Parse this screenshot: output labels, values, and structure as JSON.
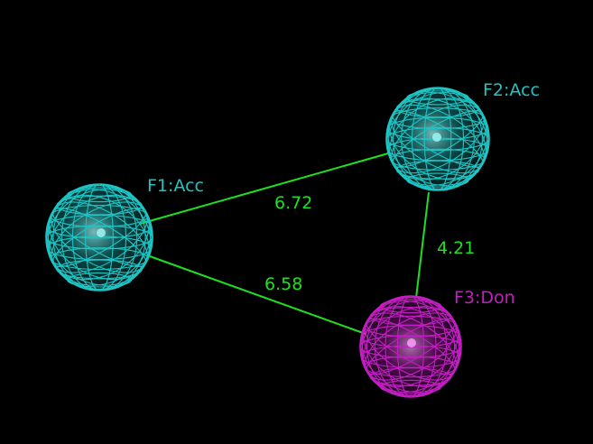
{
  "colors": {
    "background": "#000000",
    "acceptor": "#1fc4c4",
    "acceptor_glow": "#9ff5f5",
    "donor": "#c21ec2",
    "donor_glow": "#f59ff5",
    "distance_line": "#1fe01f"
  },
  "features": [
    {
      "id": "F1",
      "label": "F1:Acc",
      "type": "acceptor"
    },
    {
      "id": "F2",
      "label": "F2:Acc",
      "type": "acceptor"
    },
    {
      "id": "F3",
      "label": "F3:Don",
      "type": "donor"
    }
  ],
  "distances": [
    {
      "from": "F1",
      "to": "F2",
      "label": "6.72"
    },
    {
      "from": "F1",
      "to": "F3",
      "label": "6.58"
    },
    {
      "from": "F2",
      "to": "F3",
      "label": "4.21"
    }
  ]
}
